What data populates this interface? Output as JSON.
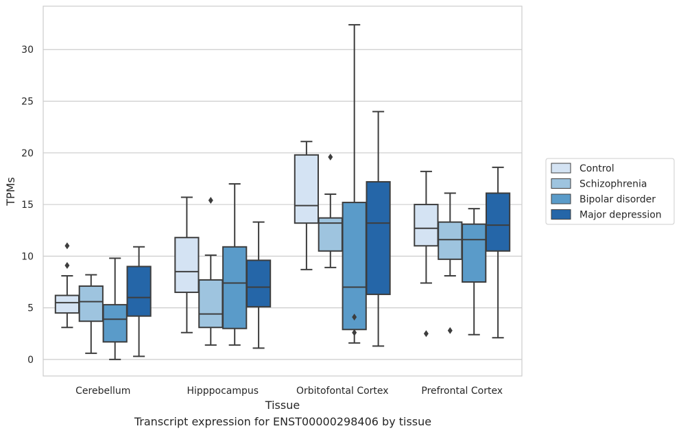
{
  "caption": "Transcript expression for ENST00000298406 by tissue",
  "chart_data": {
    "type": "boxplot",
    "xlabel": "Tissue",
    "ylabel": "TPMs",
    "ylim": [
      -1.6,
      34.2
    ],
    "yticks": [
      0,
      5,
      10,
      15,
      20,
      25,
      30
    ],
    "grid": "horizontal",
    "legend_position": "right",
    "categories": [
      "Cerebellum",
      "Hipppocampus",
      "Orbitofontal Cortex",
      "Prefrontal Cortex"
    ],
    "series": [
      {
        "name": "Control",
        "color": "#d4e3f3",
        "boxes": [
          {
            "whisker_low": 3.1,
            "q1": 4.5,
            "median": 5.5,
            "q3": 6.2,
            "whisker_high": 8.1,
            "outliers": [
              9.1,
              11.0
            ]
          },
          {
            "whisker_low": 2.6,
            "q1": 6.5,
            "median": 8.5,
            "q3": 11.8,
            "whisker_high": 15.7,
            "outliers": []
          },
          {
            "whisker_low": 8.7,
            "q1": 13.2,
            "median": 14.9,
            "q3": 19.8,
            "whisker_high": 21.1,
            "outliers": []
          },
          {
            "whisker_low": 7.4,
            "q1": 11.0,
            "median": 12.7,
            "q3": 15.0,
            "whisker_high": 18.2,
            "outliers": [
              2.5
            ]
          }
        ]
      },
      {
        "name": "Schizophrenia",
        "color": "#9ec4df",
        "boxes": [
          {
            "whisker_low": 0.6,
            "q1": 3.7,
            "median": 5.6,
            "q3": 7.1,
            "whisker_high": 8.2,
            "outliers": []
          },
          {
            "whisker_low": 1.4,
            "q1": 3.1,
            "median": 4.4,
            "q3": 7.7,
            "whisker_high": 10.1,
            "outliers": [
              15.4
            ]
          },
          {
            "whisker_low": 8.9,
            "q1": 10.5,
            "median": 13.2,
            "q3": 13.7,
            "whisker_high": 16.0,
            "outliers": [
              19.6
            ]
          },
          {
            "whisker_low": 8.1,
            "q1": 9.7,
            "median": 11.6,
            "q3": 13.3,
            "whisker_high": 16.1,
            "outliers": [
              2.8
            ]
          }
        ]
      },
      {
        "name": "Bipolar disorder",
        "color": "#5a9bc9",
        "boxes": [
          {
            "whisker_low": 0.0,
            "q1": 1.7,
            "median": 3.9,
            "q3": 5.3,
            "whisker_high": 9.8,
            "outliers": []
          },
          {
            "whisker_low": 1.4,
            "q1": 3.0,
            "median": 7.4,
            "q3": 10.9,
            "whisker_high": 17.0,
            "outliers": []
          },
          {
            "whisker_low": 1.6,
            "q1": 2.9,
            "median": 7.0,
            "q3": 15.2,
            "whisker_high": 32.4,
            "outliers": [
              2.6,
              4.1
            ]
          },
          {
            "whisker_low": 2.4,
            "q1": 7.5,
            "median": 11.6,
            "q3": 13.1,
            "whisker_high": 14.6,
            "outliers": []
          }
        ]
      },
      {
        "name": "Major depression",
        "color": "#2566a8",
        "boxes": [
          {
            "whisker_low": 0.3,
            "q1": 4.2,
            "median": 6.0,
            "q3": 9.0,
            "whisker_high": 10.9,
            "outliers": []
          },
          {
            "whisker_low": 1.1,
            "q1": 5.1,
            "median": 7.0,
            "q3": 9.6,
            "whisker_high": 13.3,
            "outliers": []
          },
          {
            "whisker_low": 1.3,
            "q1": 6.3,
            "median": 13.2,
            "q3": 17.2,
            "whisker_high": 24.0,
            "outliers": []
          },
          {
            "whisker_low": 2.1,
            "q1": 10.5,
            "median": 13.0,
            "q3": 16.1,
            "whisker_high": 18.6,
            "outliers": []
          }
        ]
      }
    ]
  }
}
